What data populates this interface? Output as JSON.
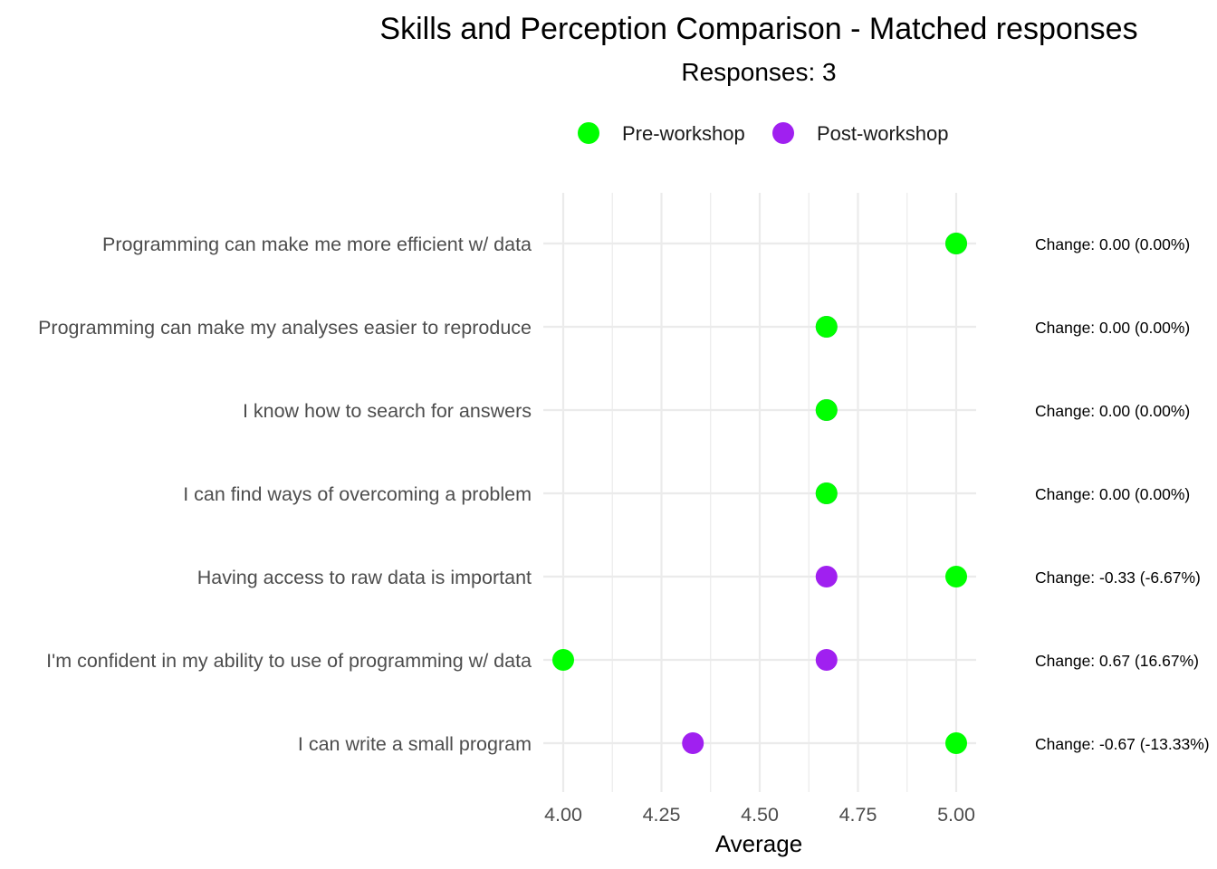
{
  "chart_data": {
    "type": "scatter",
    "title": "Skills and Perception Comparison - Matched responses",
    "subtitle": "Responses: 3",
    "xlabel": "Average",
    "ylabel": "",
    "xlim": [
      3.995,
      5.05
    ],
    "xticks": [
      "4.00",
      "4.25",
      "4.50",
      "4.75",
      "5.00"
    ],
    "xtick_values": [
      4.0,
      4.25,
      4.5,
      4.75,
      5.0
    ],
    "grid": true,
    "legend_position": "top",
    "categories": [
      "Programming can make me more efficient w/ data",
      "Programming can make my analyses easier to reproduce",
      "I know how to search for answers",
      "I can find ways of overcoming a problem",
      "Having access to raw data is important",
      "I'm confident in my ability to use of programming w/ data",
      "I can write a small program"
    ],
    "series": [
      {
        "name": "Pre-workshop",
        "color": "#00ff00",
        "values": [
          5.0,
          4.67,
          4.67,
          4.67,
          5.0,
          4.0,
          5.0
        ]
      },
      {
        "name": "Post-workshop",
        "color": "#a020f0",
        "values": [
          5.0,
          4.67,
          4.67,
          4.67,
          4.67,
          4.67,
          4.33
        ]
      }
    ],
    "annotations": [
      "Change: 0.00 (0.00%)",
      "Change: 0.00 (0.00%)",
      "Change: 0.00 (0.00%)",
      "Change: 0.00 (0.00%)",
      "Change: -0.33 (-6.67%)",
      "Change: 0.67 (16.67%)",
      "Change: -0.67 (-13.33%)"
    ]
  }
}
